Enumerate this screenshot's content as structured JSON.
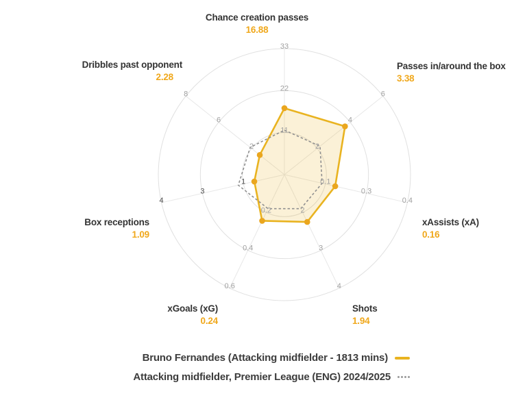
{
  "chart_data": {
    "type": "radar",
    "rings": 3,
    "grid": "circular",
    "axes": [
      {
        "label": "Chance creation passes",
        "value": "16.88",
        "ticks": [
          "11",
          "22",
          "33"
        ],
        "tick_color": "#a0a0a0"
      },
      {
        "label": "Passes in/around the box",
        "value": "3.38",
        "ticks": [
          "2",
          "4",
          "6"
        ],
        "tick_color": "#a0a0a0"
      },
      {
        "label": "xAssists (xA)",
        "value": "0.16",
        "ticks": [
          "0.1",
          "0.3",
          "0.4"
        ],
        "tick_color": "#a0a0a0"
      },
      {
        "label": "Shots",
        "value": "1.94",
        "ticks": [
          "2",
          "3",
          "4"
        ],
        "tick_color": "#a0a0a0"
      },
      {
        "label": "xGoals (xG)",
        "value": "0.24",
        "ticks": [
          "0.2",
          "0.4",
          "0.6"
        ],
        "tick_color": "#a0a0a0"
      },
      {
        "label": "Box receptions",
        "value": "1.09",
        "ticks": [
          "1",
          "3",
          "4"
        ],
        "tick_color": "#4d4d4d"
      },
      {
        "label": "Dribbles past opponent",
        "value": "2.28",
        "ticks": [
          "2",
          "6",
          "8"
        ],
        "tick_color": "#a0a0a0"
      }
    ],
    "series": [
      {
        "name": "Bruno Fernandes (Attacking midfielder - 1813 mins)",
        "style": "solid",
        "color": "#e9b320",
        "fill_color": "#e9b320",
        "fill_opacity": 0.18,
        "marker_color": "#eaa61e",
        "show_markers": true,
        "radii_ring_units": [
          1.582,
          1.843,
          1.24,
          1.25,
          1.22,
          0.735,
          0.75
        ]
      },
      {
        "name": "Attacking midfielder, Premier League (ENG) 2024/2025",
        "style": "dashed",
        "color": "#8f8f8f",
        "fill_opacity": 0,
        "show_markers": false,
        "radii_ring_units": [
          1.06,
          1.085,
          0.92,
          0.9,
          0.9,
          1.125,
          1.04
        ]
      }
    ],
    "grid_color": "#e0e0e0",
    "spoke_color": "#e7e7e7"
  },
  "legend": {
    "items": [
      {
        "label": "Bruno Fernandes (Attacking midfielder - 1813 mins)",
        "swatch": "solid-line",
        "color": "#e9b320"
      },
      {
        "label": "Attacking midfielder, Premier League (ENG) 2024/2025",
        "swatch": "dotted-line",
        "color": "#9a9a9a"
      }
    ]
  }
}
